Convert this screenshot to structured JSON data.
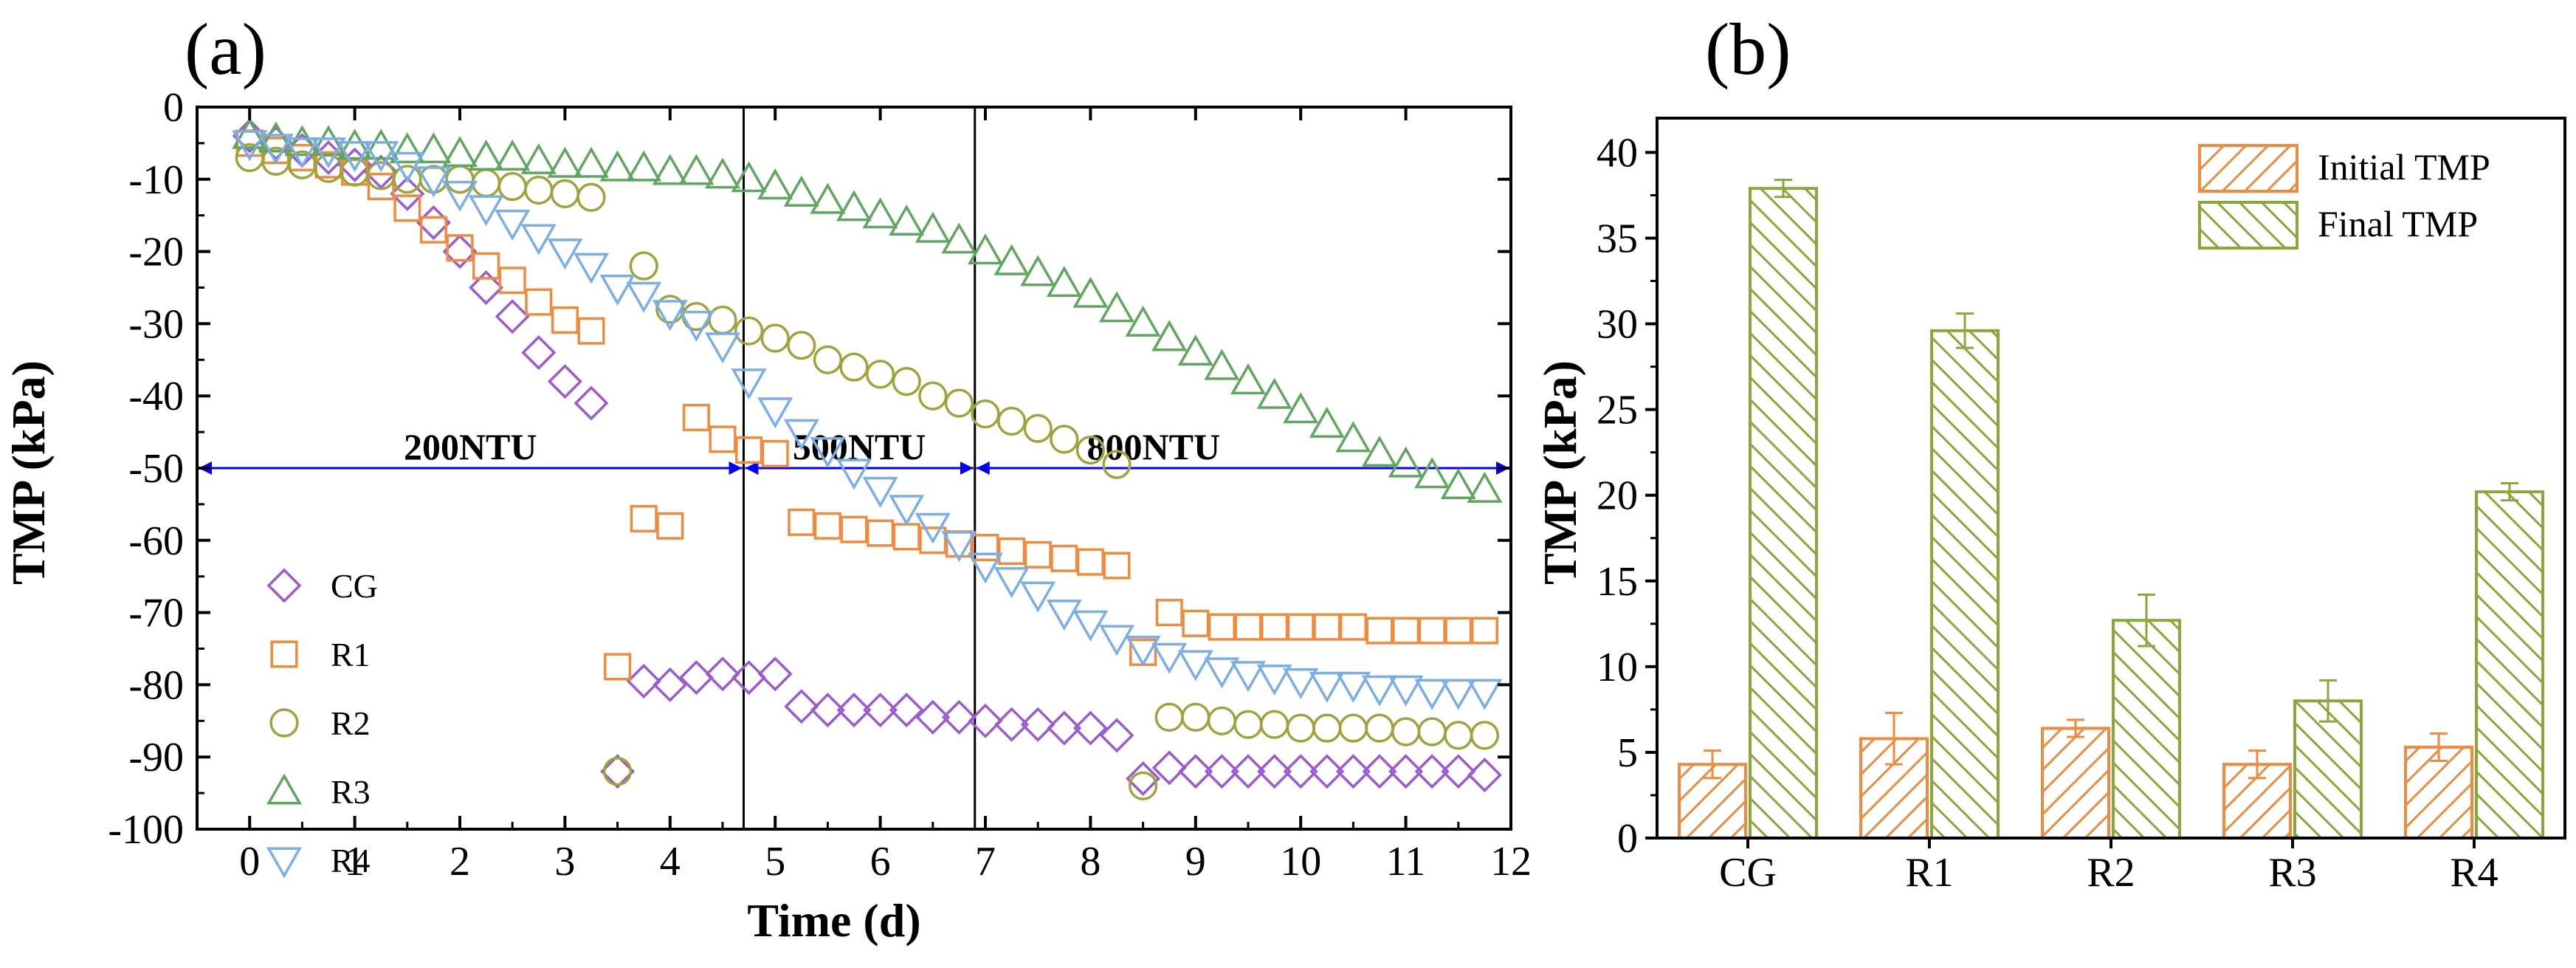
{
  "colors": {
    "CG": "#9b59d6",
    "R1": "#f08a3c",
    "R2": "#9ea33a",
    "R3": "#5fa65f",
    "R4": "#7aaee8",
    "arrow": "#0000ff",
    "initial_bar": "#f08a3c",
    "final_bar": "#8aa83a"
  },
  "chart_data": [
    {
      "type": "scatter",
      "panel_label": "(a)",
      "xlabel": "Time (d)",
      "ylabel": "TMP (kPa)",
      "xlim": [
        -0.5,
        12
      ],
      "ylim": [
        -100,
        0
      ],
      "xticks": [
        0,
        1,
        2,
        3,
        4,
        5,
        6,
        7,
        8,
        9,
        10,
        11,
        12
      ],
      "yticks": [
        0,
        -10,
        -20,
        -30,
        -40,
        -50,
        -60,
        -70,
        -80,
        -90,
        -100
      ],
      "vlines": [
        4.7,
        6.9
      ],
      "regions": [
        {
          "label": "200NTU",
          "x_start": -0.5,
          "x_end": 4.7,
          "label_x": 2.1
        },
        {
          "label": "500NTU",
          "x_start": 4.7,
          "x_end": 6.9,
          "label_x": 5.8
        },
        {
          "label": "800NTU",
          "x_start": 6.9,
          "x_end": 12,
          "label_x": 8.6
        }
      ],
      "arrow_y": -50,
      "legend": [
        "CG",
        "R1",
        "R2",
        "R3",
        "R4"
      ],
      "series": [
        {
          "name": "CG",
          "marker": "diamond",
          "x": [
            0,
            0.25,
            0.5,
            0.75,
            1.0,
            1.25,
            1.5,
            1.75,
            2.0,
            2.25,
            2.5,
            2.75,
            3.0,
            3.25,
            3.5,
            3.75,
            4.0,
            4.25,
            4.5,
            4.75,
            5.0,
            5.25,
            5.5,
            5.75,
            6.0,
            6.25,
            6.5,
            6.75,
            7.0,
            7.25,
            7.5,
            7.75,
            8.0,
            8.25,
            8.5,
            8.75,
            9.0,
            9.25,
            9.5,
            9.75,
            10.0,
            10.25,
            10.5,
            10.75,
            11.0,
            11.25,
            11.5,
            11.75
          ],
          "y": [
            -4,
            -5,
            -6,
            -7,
            -8,
            -9,
            -12,
            -16,
            -20,
            -25,
            -29,
            -34,
            -38,
            -41,
            -92,
            -79.5,
            -80,
            -79,
            -78.5,
            -79,
            -78.5,
            -83,
            -83.5,
            -83.5,
            -83.5,
            -83.5,
            -84.5,
            -84.5,
            -85,
            -85.5,
            -85.5,
            -86,
            -86,
            -87,
            -93,
            -91.5,
            -92,
            -92,
            -92,
            -92,
            -92,
            -92,
            -92,
            -92,
            -92,
            -92,
            -92,
            -92.5
          ]
        },
        {
          "name": "R1",
          "marker": "square",
          "x": [
            0,
            0.25,
            0.5,
            0.75,
            1.0,
            1.25,
            1.5,
            1.75,
            2.0,
            2.25,
            2.5,
            2.75,
            3.0,
            3.25,
            3.5,
            3.75,
            4.0,
            4.25,
            4.5,
            4.75,
            5.0,
            5.25,
            5.5,
            5.75,
            6.0,
            6.25,
            6.5,
            6.75,
            7.0,
            7.25,
            7.5,
            7.75,
            8.0,
            8.25,
            8.5,
            8.75,
            9.0,
            9.25,
            9.5,
            9.75,
            10.0,
            10.25,
            10.5,
            10.75,
            11.0,
            11.25,
            11.5,
            11.75
          ],
          "y": [
            -5,
            -6,
            -7,
            -8,
            -9,
            -11,
            -14,
            -17,
            -19.5,
            -22,
            -24,
            -27,
            -29.5,
            -31,
            -77.5,
            -57,
            -58,
            -43,
            -46,
            -47.5,
            -48,
            -57.5,
            -58,
            -58.5,
            -59,
            -59.5,
            -60,
            -60.5,
            -61,
            -61.5,
            -62,
            -62.5,
            -63,
            -63.5,
            -75.5,
            -70,
            -71.5,
            -72,
            -72,
            -72,
            -72,
            -72,
            -72,
            -72.5,
            -72.5,
            -72.5,
            -72.5,
            -72.5
          ]
        },
        {
          "name": "R2",
          "marker": "circle",
          "x": [
            0,
            0.25,
            0.5,
            0.75,
            1.0,
            1.25,
            1.5,
            1.75,
            2.0,
            2.25,
            2.5,
            2.75,
            3.0,
            3.25,
            3.5,
            3.75,
            4.0,
            4.25,
            4.5,
            4.75,
            5.0,
            5.25,
            5.5,
            5.75,
            6.0,
            6.25,
            6.5,
            6.75,
            7.0,
            7.25,
            7.5,
            7.75,
            8.0,
            8.25,
            8.5,
            8.75,
            9.0,
            9.25,
            9.5,
            9.75,
            10.0,
            10.25,
            10.5,
            10.75,
            11.0,
            11.25,
            11.5,
            11.75
          ],
          "y": [
            -7,
            -7.5,
            -8,
            -8.5,
            -9,
            -9.5,
            -10,
            -10,
            -10,
            -10.5,
            -11,
            -11.5,
            -12,
            -12.5,
            -92,
            -22,
            -28,
            -29,
            -29.5,
            -31,
            -32,
            -33,
            -35,
            -36,
            -37,
            -38,
            -40,
            -41,
            -42.5,
            -43.5,
            -44.5,
            -46,
            -47.5,
            -49.5,
            -94,
            -84.5,
            -84.5,
            -85,
            -85.5,
            -85.5,
            -86,
            -86,
            -86,
            -86,
            -86.5,
            -86.5,
            -87,
            -87
          ]
        },
        {
          "name": "R3",
          "marker": "triangle-up",
          "x": [
            0,
            0.25,
            0.5,
            0.75,
            1.0,
            1.25,
            1.5,
            1.75,
            2.0,
            2.25,
            2.5,
            2.75,
            3.0,
            3.25,
            3.5,
            3.75,
            4.0,
            4.25,
            4.5,
            4.75,
            5.0,
            5.25,
            5.5,
            5.75,
            6.0,
            6.25,
            6.5,
            6.75,
            7.0,
            7.25,
            7.5,
            7.75,
            8.0,
            8.25,
            8.5,
            8.75,
            9.0,
            9.25,
            9.5,
            9.75,
            10.0,
            10.25,
            10.5,
            10.75,
            11.0,
            11.25,
            11.5,
            11.75
          ],
          "y": [
            -4,
            -4.5,
            -5,
            -5,
            -5.5,
            -5.5,
            -6,
            -6,
            -6.5,
            -7,
            -7,
            -7.5,
            -8,
            -8,
            -8.5,
            -8.5,
            -9,
            -9,
            -9.5,
            -10,
            -11,
            -12,
            -13,
            -14,
            -15,
            -16,
            -17,
            -18.5,
            -20,
            -21.5,
            -23,
            -24.5,
            -26,
            -28,
            -30,
            -32,
            -34,
            -36,
            -38,
            -40,
            -42,
            -44,
            -46,
            -48,
            -49.5,
            -51,
            -52.5,
            -53
          ]
        },
        {
          "name": "R4",
          "marker": "triangle-down",
          "x": [
            0,
            0.25,
            0.5,
            0.75,
            1.0,
            1.25,
            1.5,
            1.75,
            2.0,
            2.25,
            2.5,
            2.75,
            3.0,
            3.25,
            3.5,
            3.75,
            4.0,
            4.25,
            4.5,
            4.75,
            5.0,
            5.25,
            5.5,
            5.75,
            6.0,
            6.25,
            6.5,
            6.75,
            7.0,
            7.25,
            7.5,
            7.75,
            8.0,
            8.25,
            8.5,
            8.75,
            9.0,
            9.25,
            9.5,
            9.75,
            10.0,
            10.25,
            10.5,
            10.75,
            11.0,
            11.25,
            11.5,
            11.75
          ],
          "y": [
            -5,
            -5.5,
            -6,
            -6,
            -6.5,
            -6.5,
            -8,
            -10,
            -12,
            -14,
            -16,
            -18,
            -20,
            -22,
            -25,
            -26,
            -28.5,
            -30,
            -33,
            -38,
            -42,
            -45,
            -47.5,
            -50.5,
            -53,
            -55.5,
            -58,
            -60.5,
            -63.5,
            -65.5,
            -67.5,
            -70,
            -71.5,
            -73.5,
            -75,
            -76,
            -77,
            -78,
            -78.5,
            -79,
            -79.5,
            -80,
            -80,
            -80.5,
            -80.5,
            -81,
            -81,
            -81
          ]
        }
      ]
    },
    {
      "type": "bar",
      "panel_label": "(b)",
      "xlabel": "",
      "ylabel": "TMP (kPa)",
      "ylim": [
        0,
        42
      ],
      "yticks": [
        0,
        5,
        10,
        15,
        20,
        25,
        30,
        35,
        40
      ],
      "categories": [
        "CG",
        "R1",
        "R2",
        "R3",
        "R4"
      ],
      "legend_position": "top-right",
      "series": [
        {
          "name": "Initial TMP",
          "values": [
            4.3,
            5.8,
            6.4,
            4.3,
            5.3
          ],
          "errors": [
            0.8,
            1.5,
            0.5,
            0.8,
            0.8
          ],
          "hatch": "forward"
        },
        {
          "name": "Final TMP",
          "values": [
            37.9,
            29.6,
            12.7,
            8.0,
            20.2
          ],
          "errors": [
            0.5,
            1.0,
            1.5,
            1.2,
            0.5
          ],
          "hatch": "backward"
        }
      ]
    }
  ]
}
